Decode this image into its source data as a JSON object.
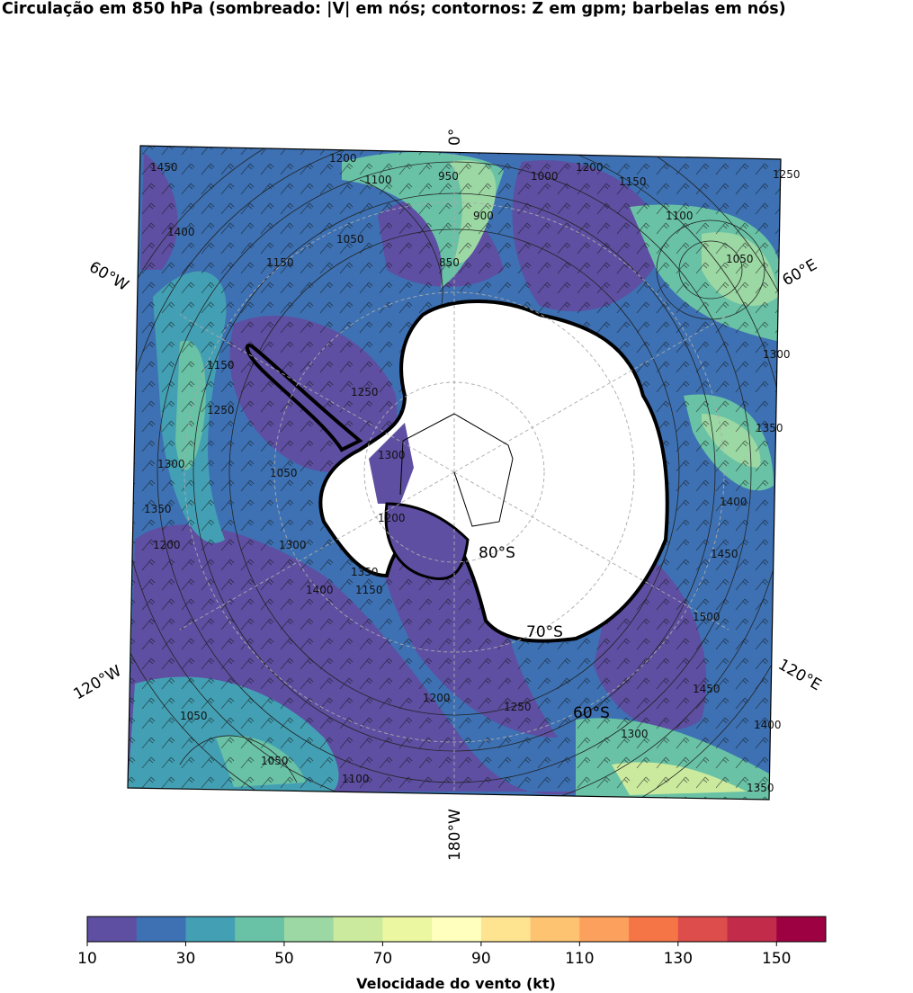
{
  "title": "Circulação em 850 hPa (sombreado: |V| em nós; contornos: Z em gpm; barbelas em nós)",
  "colorbar": {
    "label": "Velocidade do vento (kt)",
    "ticks": [
      "10",
      "30",
      "50",
      "70",
      "90",
      "110",
      "130",
      "150"
    ],
    "bounds": [
      10,
      160
    ],
    "step": 10,
    "colors": [
      "#5e4fa2",
      "#3d71b3",
      "#43a0b4",
      "#69c2a5",
      "#9cd8a4",
      "#cbea9d",
      "#ecf7a2",
      "#ffffbe",
      "#fee491",
      "#fdc370",
      "#fca05d",
      "#f57547",
      "#dd4d4b",
      "#c22b4a",
      "#9e0142"
    ]
  },
  "map": {
    "projection": "polar stereographic (south)",
    "longitude_labels": [
      "0°",
      "60°E",
      "120°E",
      "180°W",
      "120°W",
      "60°W"
    ],
    "latitude_labels": [
      "80°S",
      "70°S",
      "60°S"
    ],
    "contour_labels": [
      "1450",
      "1400",
      "1150",
      "1200",
      "1100",
      "1050",
      "950",
      "900",
      "850",
      "1000",
      "1200",
      "1150",
      "1100",
      "1050",
      "1250",
      "1300",
      "1350",
      "1400",
      "1450",
      "1500",
      "1450",
      "1400",
      "1350",
      "1300",
      "1250",
      "1200",
      "1100",
      "1050",
      "1050",
      "1200",
      "1350",
      "1300",
      "1250",
      "1150",
      "1050",
      "1300",
      "1400",
      "1350",
      "1300",
      "1250",
      "1200",
      "1150"
    ]
  },
  "colors": {
    "land": "#ffffff",
    "coast": "#000000",
    "frame": "#000000",
    "grid": "#aaaaaa"
  }
}
